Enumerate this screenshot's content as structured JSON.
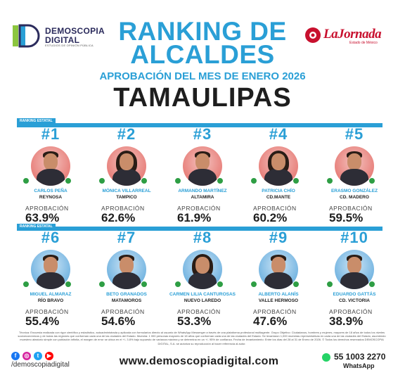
{
  "brand": {
    "name_line1": "DEMOSCOPIA",
    "name_line2": "DIGITAL",
    "tagline": "ESTUDIOS DE OPINIÓN PÚBLICA"
  },
  "partner": {
    "name": "LaJornada",
    "sub": "Estado de México"
  },
  "header": {
    "title_line1": "RANKING DE",
    "title_line2": "ALCALDES",
    "subtitle": "APROBACIÓN DEL MES DE ENERO 2026",
    "state": "TAMAULIPAS",
    "section_label": "RANKING ESTATAL"
  },
  "approval_label": "APROBACIÓN",
  "ranking": [
    {
      "rank": "#1",
      "name": "CARLOS PEÑA",
      "city": "REYNOSA",
      "pct": "63.9%",
      "gender": "m"
    },
    {
      "rank": "#2",
      "name": "MÓNICA VILLARREAL",
      "city": "TAMPICO",
      "pct": "62.6%",
      "gender": "f"
    },
    {
      "rank": "#3",
      "name": "ARMANDO MARTÍNEZ",
      "city": "ALTAMIRA",
      "pct": "61.9%",
      "gender": "m"
    },
    {
      "rank": "#4",
      "name": "PATRICIA CHÍO",
      "city": "CD.MANTE",
      "pct": "60.2%",
      "gender": "f"
    },
    {
      "rank": "#5",
      "name": "ERASMO GONZÁLEZ",
      "city": "CD. MADERO",
      "pct": "59.5%",
      "gender": "m"
    },
    {
      "rank": "#6",
      "name": "MIGUEL ALMARAZ",
      "city": "RÍO BRAVO",
      "pct": "55.4%",
      "gender": "m"
    },
    {
      "rank": "#7",
      "name": "BETO GRANADOS",
      "city": "MATAMOROS",
      "pct": "54.6%",
      "gender": "m"
    },
    {
      "rank": "#8",
      "name": "CARMEN LILIA CANTUROSAS",
      "city": "NUEVO LAREDO",
      "pct": "53.3%",
      "gender": "f"
    },
    {
      "rank": "#9",
      "name": "ALBERTO ALANÍS",
      "city": "VALLE HERMOSO",
      "pct": "47.6%",
      "gender": "m"
    },
    {
      "rank": "#10",
      "name": "EDUARDO GATTÁS",
      "city": "CD. VICTORIA",
      "pct": "38.9%",
      "gender": "m"
    }
  ],
  "footer": {
    "note": "Técnica: Encuesta realizada con rigor científico y estadístico, autoadministrada y aplicada con formularios directo al usuario de WhatsApp Messenger a través de una plataforma profesional multiagente. Grupo Objetivo: Ciudadanos, hombres y mujeres, mayores de 18 años de todos los niveles socioeconómicos y de todas las regiones que conforman cada una de las ciudades del Estado. Muestra: 1 000 personas mayores de 18 años que conforman cada una de las ciudades del Estado. Se levantaron 1,000 muestras representativas en cada una de las ciudades del Estado, asumiendo muestreo aleatorio simple con población infinita, el margen de error se ubica en el +/- 3.8% bajo supuesto de varianza máxima y se determina en un +/- 95% de confianza. Fecha de levantamiento: Entre los días del 28 al 31 de Enero de 2026. © Todos los derechos reservados DEMOSCOPIA DIGITAL, S.A. se autoriza su reproducción al hacer referencia al autor.",
    "handle": "/demoscopiadigital",
    "website": "www.demoscopiadigital.com",
    "phone": "55 1003 2270",
    "whatsapp": "WhatsApp"
  }
}
